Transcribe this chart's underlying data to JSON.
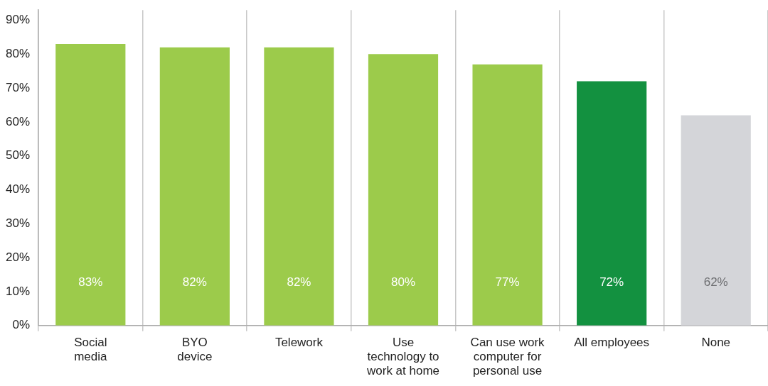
{
  "chart_data": {
    "type": "bar",
    "categories": [
      "Social\nmedia",
      "BYO\ndevice",
      "Telework",
      "Use\ntechnology to\nwork at home",
      "Can use work\ncomputer for\npersonal use",
      "All employees",
      "None"
    ],
    "values": [
      83,
      82,
      82,
      80,
      77,
      72,
      62
    ],
    "colors": [
      "#9ccb4b",
      "#9ccb4b",
      "#9ccb4b",
      "#9ccb4b",
      "#9ccb4b",
      "#139140",
      "#d4d5d9"
    ],
    "value_labels": [
      "83%",
      "82%",
      "82%",
      "80%",
      "77%",
      "72%",
      "62%"
    ],
    "ylim": [
      0,
      93
    ],
    "yticks": [
      {
        "value": 0,
        "label": "0%"
      },
      {
        "value": 10,
        "label": "10%"
      },
      {
        "value": 20,
        "label": "20%"
      },
      {
        "value": 30,
        "label": "30%"
      },
      {
        "value": 40,
        "label": "40%"
      },
      {
        "value": 50,
        "label": "50%"
      },
      {
        "value": 60,
        "label": "60%"
      },
      {
        "value": 70,
        "label": "70%"
      },
      {
        "value": 80,
        "label": "80%"
      },
      {
        "value": 90,
        "label": "90%"
      }
    ],
    "grid": "x",
    "legend": false
  }
}
